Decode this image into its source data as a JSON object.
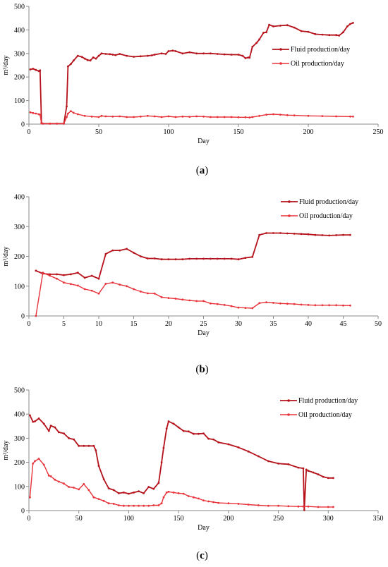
{
  "colors": {
    "fluid": "#b5121b",
    "oil": "#e8323a",
    "axis": "#8a8a8a"
  },
  "chart_data": [
    {
      "type": "line",
      "caption_prefix": "(",
      "caption_letter": "a",
      "caption_suffix": ")",
      "xlabel": "Day",
      "ylabel": "m³/day",
      "xlim": [
        0,
        250
      ],
      "ylim": [
        0,
        500
      ],
      "xticks": [
        0,
        50,
        100,
        150,
        200,
        250
      ],
      "yticks": [
        0,
        100,
        200,
        300,
        400,
        500
      ],
      "legend_position": "right",
      "grid": false,
      "series": [
        {
          "name": "Fluid production/day",
          "x": [
            1,
            3,
            5,
            7,
            8,
            9,
            10,
            15,
            20,
            25,
            27,
            28,
            30,
            32,
            35,
            38,
            40,
            42,
            44,
            46,
            48,
            50,
            52,
            55,
            58,
            60,
            62,
            65,
            70,
            75,
            80,
            85,
            88,
            90,
            95,
            98,
            100,
            103,
            105,
            110,
            115,
            120,
            125,
            130,
            135,
            140,
            145,
            150,
            153,
            155,
            157,
            158,
            160,
            163,
            165,
            168,
            170,
            172,
            175,
            180,
            185,
            190,
            195,
            200,
            205,
            210,
            215,
            220,
            222,
            225,
            228,
            230,
            232
          ],
          "y": [
            232,
            235,
            230,
            225,
            228,
            5,
            2,
            2,
            2,
            2,
            75,
            245,
            255,
            270,
            290,
            285,
            278,
            272,
            270,
            283,
            278,
            290,
            300,
            298,
            297,
            295,
            293,
            298,
            290,
            286,
            288,
            290,
            292,
            295,
            300,
            298,
            310,
            312,
            310,
            300,
            305,
            300,
            300,
            300,
            298,
            296,
            295,
            295,
            290,
            280,
            283,
            282,
            328,
            345,
            360,
            388,
            390,
            422,
            415,
            418,
            420,
            410,
            395,
            392,
            382,
            380,
            378,
            378,
            376,
            390,
            415,
            425,
            430
          ]
        },
        {
          "name": "Oil production/day",
          "x": [
            1,
            3,
            5,
            7,
            8,
            9,
            10,
            15,
            20,
            25,
            27,
            28,
            30,
            32,
            35,
            40,
            45,
            50,
            52,
            55,
            60,
            65,
            70,
            75,
            80,
            85,
            90,
            95,
            100,
            105,
            110,
            115,
            120,
            125,
            130,
            135,
            140,
            145,
            150,
            155,
            158,
            160,
            165,
            170,
            175,
            180,
            185,
            190,
            200,
            210,
            220,
            230,
            232
          ],
          "y": [
            50,
            47,
            45,
            42,
            40,
            3,
            2,
            2,
            2,
            2,
            30,
            45,
            55,
            48,
            42,
            35,
            32,
            30,
            35,
            33,
            32,
            33,
            30,
            30,
            32,
            35,
            33,
            30,
            33,
            30,
            32,
            31,
            33,
            32,
            30,
            30,
            30,
            30,
            29,
            29,
            28,
            30,
            35,
            40,
            42,
            40,
            38,
            37,
            35,
            34,
            33,
            32,
            32
          ]
        }
      ]
    },
    {
      "type": "line",
      "caption_prefix": "(",
      "caption_letter": "b",
      "caption_suffix": ")",
      "xlabel": "Day",
      "ylabel": "m³/day",
      "xlim": [
        0,
        50
      ],
      "ylim": [
        0,
        400
      ],
      "xticks": [
        0,
        5,
        10,
        15,
        20,
        25,
        30,
        35,
        40,
        45,
        50
      ],
      "yticks": [
        0,
        100,
        200,
        300,
        400
      ],
      "legend_position": "right",
      "grid": false,
      "series": [
        {
          "name": "Fluid production/day",
          "x": [
            1,
            2,
            3,
            4,
            5,
            6,
            7,
            8,
            9,
            10,
            11,
            12,
            13,
            14,
            15,
            16,
            17,
            18,
            19,
            20,
            21,
            22,
            23,
            24,
            25,
            26,
            27,
            28,
            29,
            30,
            31,
            32,
            33,
            34,
            35,
            36,
            37,
            38,
            39,
            40,
            41,
            42,
            43,
            44,
            45,
            46
          ],
          "y": [
            152,
            142,
            140,
            140,
            137,
            140,
            145,
            128,
            135,
            125,
            208,
            220,
            220,
            225,
            212,
            200,
            193,
            193,
            190,
            190,
            190,
            190,
            192,
            192,
            192,
            192,
            192,
            192,
            192,
            190,
            195,
            198,
            272,
            278,
            278,
            278,
            277,
            276,
            275,
            274,
            272,
            271,
            270,
            271,
            272,
            272
          ]
        },
        {
          "name": "Oil production/day",
          "x": [
            1,
            2,
            3,
            4,
            5,
            6,
            7,
            8,
            9,
            10,
            11,
            12,
            13,
            14,
            15,
            16,
            17,
            18,
            19,
            20,
            21,
            22,
            23,
            24,
            25,
            26,
            27,
            28,
            29,
            30,
            31,
            32,
            33,
            34,
            35,
            36,
            37,
            38,
            39,
            40,
            41,
            42,
            43,
            44,
            45,
            46
          ],
          "y": [
            0,
            145,
            135,
            125,
            112,
            107,
            102,
            90,
            85,
            75,
            108,
            112,
            105,
            100,
            90,
            82,
            76,
            75,
            63,
            60,
            58,
            55,
            52,
            50,
            50,
            42,
            40,
            37,
            33,
            28,
            27,
            26,
            43,
            46,
            44,
            42,
            41,
            40,
            38,
            37,
            36,
            36,
            36,
            36,
            35,
            35
          ]
        }
      ]
    },
    {
      "type": "line",
      "caption_prefix": "(",
      "caption_letter": "c",
      "caption_suffix": ")",
      "xlabel": "Day",
      "ylabel": "m³/day",
      "xlim": [
        0,
        350
      ],
      "ylim": [
        0,
        500
      ],
      "xticks": [
        0,
        50,
        100,
        150,
        200,
        250,
        300,
        350
      ],
      "yticks": [
        0,
        100,
        200,
        300,
        400,
        500
      ],
      "legend_position": "right",
      "grid": false,
      "series": [
        {
          "name": "Fluid production/day",
          "x": [
            1,
            4,
            6,
            10,
            15,
            20,
            22,
            26,
            30,
            35,
            40,
            45,
            50,
            55,
            60,
            65,
            67,
            70,
            75,
            80,
            85,
            90,
            95,
            100,
            105,
            110,
            115,
            120,
            125,
            130,
            133,
            135,
            138,
            140,
            145,
            150,
            155,
            160,
            165,
            170,
            175,
            180,
            185,
            190,
            200,
            210,
            220,
            230,
            240,
            250,
            260,
            270,
            275,
            276,
            278,
            280,
            285,
            290,
            295,
            300,
            305
          ],
          "y": [
            395,
            368,
            370,
            382,
            360,
            330,
            352,
            345,
            325,
            320,
            300,
            295,
            268,
            268,
            268,
            268,
            250,
            185,
            130,
            92,
            85,
            72,
            75,
            70,
            75,
            80,
            72,
            98,
            90,
            115,
            200,
            260,
            340,
            370,
            360,
            345,
            330,
            328,
            318,
            318,
            320,
            298,
            295,
            283,
            275,
            262,
            245,
            225,
            205,
            195,
            192,
            178,
            175,
            2,
            170,
            165,
            158,
            150,
            140,
            135,
            135
          ]
        },
        {
          "name": "Oil production/day",
          "x": [
            1,
            4,
            6,
            10,
            15,
            20,
            22,
            26,
            30,
            35,
            40,
            45,
            50,
            55,
            60,
            65,
            70,
            75,
            80,
            85,
            90,
            95,
            100,
            105,
            110,
            115,
            120,
            125,
            130,
            133,
            135,
            138,
            140,
            145,
            150,
            155,
            160,
            165,
            170,
            175,
            180,
            185,
            190,
            200,
            210,
            220,
            230,
            240,
            250,
            260,
            270,
            275,
            280,
            290,
            300,
            305
          ],
          "y": [
            55,
            195,
            205,
            215,
            190,
            145,
            142,
            128,
            120,
            112,
            98,
            95,
            88,
            110,
            85,
            55,
            48,
            40,
            30,
            28,
            22,
            20,
            20,
            20,
            20,
            20,
            20,
            22,
            22,
            30,
            55,
            75,
            78,
            75,
            72,
            70,
            60,
            55,
            50,
            42,
            38,
            35,
            32,
            30,
            28,
            25,
            22,
            20,
            20,
            18,
            17,
            17,
            17,
            15,
            15,
            15
          ]
        }
      ]
    }
  ]
}
